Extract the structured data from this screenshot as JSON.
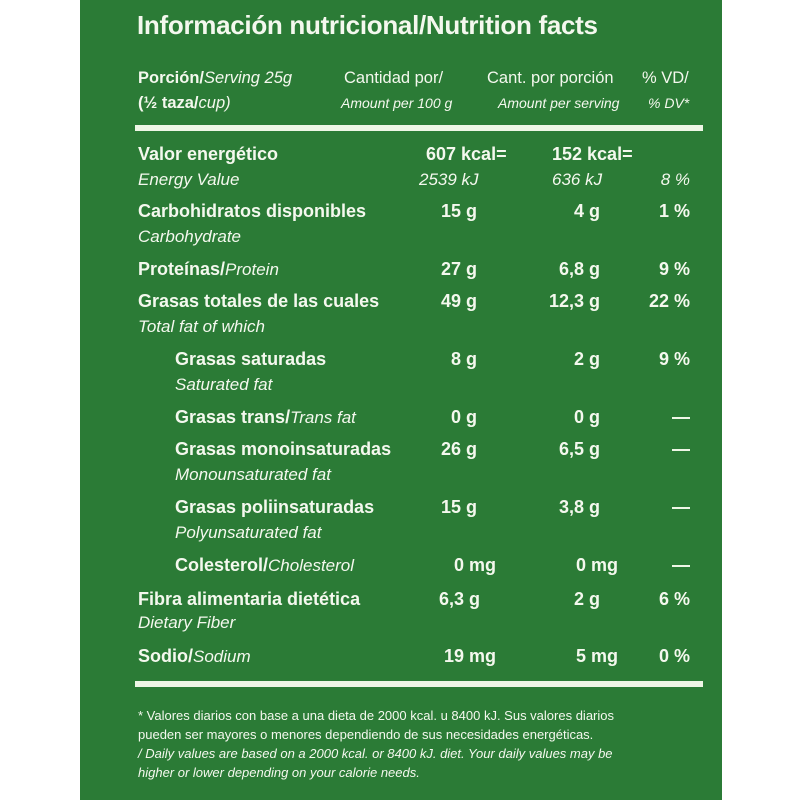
{
  "title": "Información nutricional/Nutrition facts",
  "header": {
    "serving_es": "Porción/",
    "serving_en": "Serving 25g",
    "serving2_es": "(½ taza/",
    "serving2_en": "cup)",
    "per100_es": "Cantidad por/",
    "per100_en": "Amount per 100 g",
    "perserv_es": "Cant. por porción",
    "perserv_en": "Amount per serving",
    "vd_es": "% VD/",
    "vd_en": "% DV*"
  },
  "rows": [
    {
      "es": "Valor energético",
      "en": "Energy Value",
      "per100": "607 kcal=",
      "per100_2": "2539 kJ",
      "perserv": "152 kcal=",
      "perserv_2": "636 kJ",
      "dv": "8 %"
    },
    {
      "es": "Carbohidratos disponibles",
      "en": "Carbohydrate",
      "per100": "15 g",
      "perserv": "4 g",
      "dv": "1 %"
    },
    {
      "es": "Proteínas/",
      "en": "Protein",
      "per100": "27 g",
      "perserv": "6,8 g",
      "dv": "9 %"
    },
    {
      "es": "Grasas totales de las cuales",
      "en": "Total fat of which",
      "per100": "49 g",
      "perserv": "12,3 g",
      "dv": "22 %"
    },
    {
      "es": "Grasas saturadas",
      "en": "Saturated fat",
      "per100": "8 g",
      "perserv": "2 g",
      "dv": "9 %"
    },
    {
      "es": "Grasas trans/",
      "en": "Trans fat",
      "per100": "0 g",
      "perserv": "0 g",
      "dv": ""
    },
    {
      "es": "Grasas monoinsaturadas",
      "en": "Monounsaturated fat",
      "per100": "26 g",
      "perserv": "6,5 g",
      "dv": ""
    },
    {
      "es": "Grasas poliinsaturadas",
      "en": "Polyunsaturated fat",
      "per100": "15 g",
      "perserv": "3,8 g",
      "dv": ""
    },
    {
      "es": "Colesterol/",
      "en": "Cholesterol",
      "per100": "0 mg",
      "perserv": "0 mg",
      "dv": ""
    },
    {
      "es": "Fibra alimentaria dietética",
      "en": "Dietary Fiber",
      "per100": "6,3 g",
      "perserv": "2 g",
      "dv": "6 %"
    },
    {
      "es": "Sodio/",
      "en": "Sodium",
      "per100": "19 mg",
      "perserv": "5 mg",
      "dv": "0 %"
    }
  ],
  "footnote": {
    "line1": "* Valores diarios con base a una dieta de 2000 kcal. u 8400 kJ. Sus valores diarios",
    "line2": "pueden ser mayores o menores dependiendo de sus necesidades energéticas.",
    "line3": "/ Daily values are based on a 2000 kcal. or 8400 kJ. diet. Your daily values may be",
    "line4": "higher or lower depending on your calorie needs."
  },
  "colors": {
    "background": "#2b7b36",
    "text": "#f4f8ee"
  }
}
